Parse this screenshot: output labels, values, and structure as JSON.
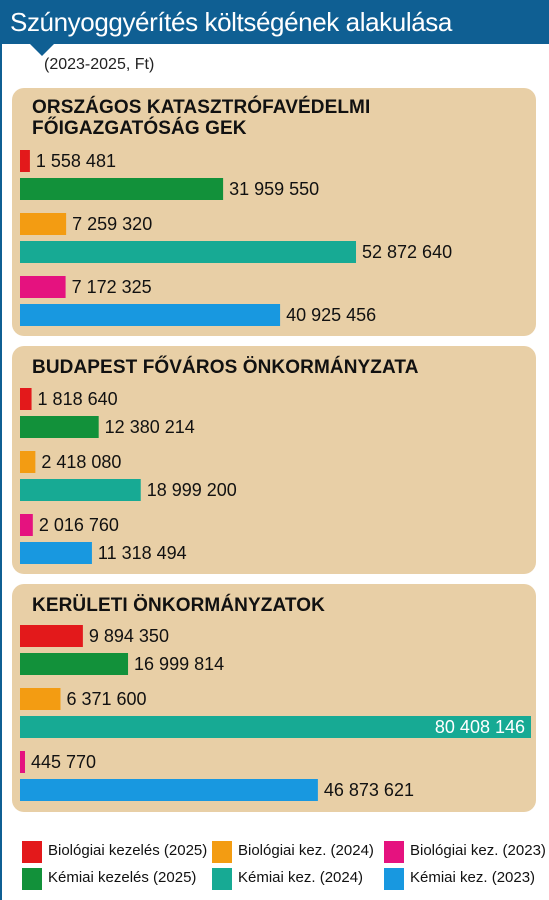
{
  "header": {
    "title": "Szúnyoggyérítés költségének alakulása"
  },
  "subtitle": "(2023-2025, Ft)",
  "legend": [
    {
      "key": "bio2025",
      "label": "Biológiai kezelés (2025)",
      "color": "#e3191b"
    },
    {
      "key": "kem2025",
      "label": "Kémiai kezelés (2025)",
      "color": "#12913a"
    },
    {
      "key": "bio2024",
      "label": "Biológiai kez. (2024)",
      "color": "#f39c12"
    },
    {
      "key": "kem2024",
      "label": "Kémiai kez. (2024)",
      "color": "#17aa94"
    },
    {
      "key": "bio2023",
      "label": "Biológiai kez. (2023)",
      "color": "#e5127f"
    },
    {
      "key": "kem2023",
      "label": "Kémiai kez. (2023)",
      "color": "#1898e0"
    }
  ],
  "chart_data": {
    "type": "bar",
    "orientation": "horizontal",
    "title": "Szúnyoggyérítés költségének alakulása",
    "subtitle": "(2023-2025, Ft)",
    "xlim": [
      0,
      80408146
    ],
    "grid": false,
    "legend_placement": "bottom",
    "groups": [
      {
        "name": "ORSZÁGOS KATASZTRÓFAVÉDELMI FŐIGAZGATÓSÁG GEK",
        "title_lines": [
          "ORSZÁGOS KATASZTRÓFAVÉDELMI",
          "FŐIGAZGATÓSÁG GEK"
        ],
        "bars": [
          {
            "series": "bio2025",
            "value": 1558481,
            "label": "1 558 481"
          },
          {
            "series": "kem2025",
            "value": 31959550,
            "label": "31 959 550"
          },
          {
            "series": "bio2024",
            "value": 7259320,
            "label": "7 259 320"
          },
          {
            "series": "kem2024",
            "value": 52872640,
            "label": "52 872 640"
          },
          {
            "series": "bio2023",
            "value": 7172325,
            "label": "7 172 325"
          },
          {
            "series": "kem2023",
            "value": 40925456,
            "label": "40 925 456"
          }
        ]
      },
      {
        "name": "BUDAPEST FŐVÁROS ÖNKORMÁNYZATA",
        "title_lines": [
          "BUDAPEST FŐVÁROS ÖNKORMÁNYZATA"
        ],
        "bars": [
          {
            "series": "bio2025",
            "value": 1818640,
            "label": "1 818 640"
          },
          {
            "series": "kem2025",
            "value": 12380214,
            "label": "12 380 214"
          },
          {
            "series": "bio2024",
            "value": 2418080,
            "label": "2 418 080"
          },
          {
            "series": "kem2024",
            "value": 18999200,
            "label": "18 999 200"
          },
          {
            "series": "bio2023",
            "value": 2016760,
            "label": "2 016 760"
          },
          {
            "series": "kem2023",
            "value": 11318494,
            "label": "11 318 494"
          }
        ]
      },
      {
        "name": "KERÜLETI ÖNKORMÁNYZATOK",
        "title_lines": [
          "KERÜLETI ÖNKORMÁNYZATOK"
        ],
        "bars": [
          {
            "series": "bio2025",
            "value": 9894350,
            "label": "9 894 350"
          },
          {
            "series": "kem2025",
            "value": 16999814,
            "label": "16 999 814"
          },
          {
            "series": "bio2024",
            "value": 6371600,
            "label": "6 371 600"
          },
          {
            "series": "kem2024",
            "value": 80408146,
            "label": "80 408 146"
          },
          {
            "series": "bio2023",
            "value": 445770,
            "label": "445 770"
          },
          {
            "series": "kem2023",
            "value": 46873621,
            "label": "46 873 621"
          }
        ]
      }
    ]
  }
}
